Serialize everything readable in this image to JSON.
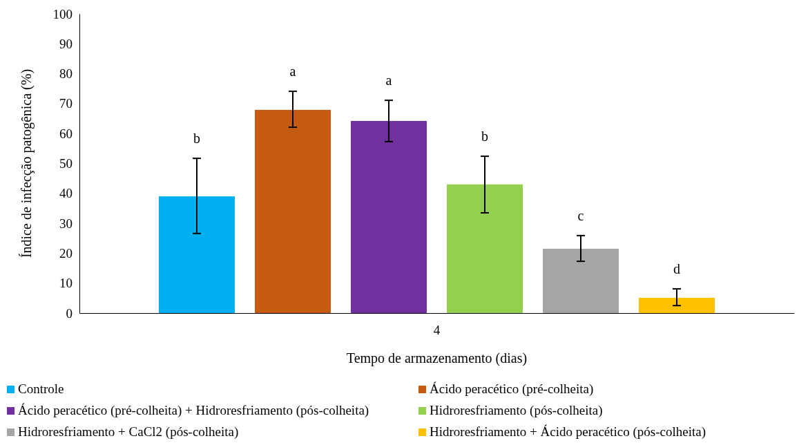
{
  "chart_data": {
    "type": "bar",
    "xlabel": "Tempo de armazenamento (dias)",
    "ylabel": "Índice de infecção patogênica (%)",
    "categories": [
      "4"
    ],
    "ylim": [
      0,
      100
    ],
    "yticks": [
      0,
      10,
      20,
      30,
      40,
      50,
      60,
      70,
      80,
      90,
      100
    ],
    "grid": false,
    "legend": "bottom",
    "series": [
      {
        "name": "Controle",
        "color": "#00b0f0",
        "values": [
          39.0
        ],
        "errors": [
          [
            26.6,
            51.7
          ]
        ]
      },
      {
        "name": "Ácido peracético (pré-colheita)",
        "color": "#c55a11",
        "values": [
          67.9
        ],
        "errors": [
          [
            62.1,
            74.1
          ]
        ]
      },
      {
        "name": "Ácido peracético (pré-colheita) + Hidroresfriamento (pós-colheita)",
        "color": "#7030a0",
        "values": [
          64.2
        ],
        "errors": [
          [
            57.3,
            71.1
          ]
        ]
      },
      {
        "name": "Hidroresfriamento (pós-colheita)",
        "color": "#92d050",
        "values": [
          43.0
        ],
        "errors": [
          [
            33.5,
            52.4
          ]
        ]
      },
      {
        "name": "Hidroresfriamento + CaCl2 (pós-colheita)",
        "color": "#a5a5a5",
        "values": [
          21.5
        ],
        "errors": [
          [
            17.3,
            25.9
          ]
        ]
      },
      {
        "name": "Hidroresfriamento + Ácido peracético (pós-colheita)",
        "color": "#ffc000",
        "values": [
          5.1
        ],
        "errors": [
          [
            2.5,
            8.1
          ]
        ]
      }
    ],
    "annotations": [
      "b",
      "a",
      "a",
      "b",
      "c",
      "d"
    ]
  }
}
